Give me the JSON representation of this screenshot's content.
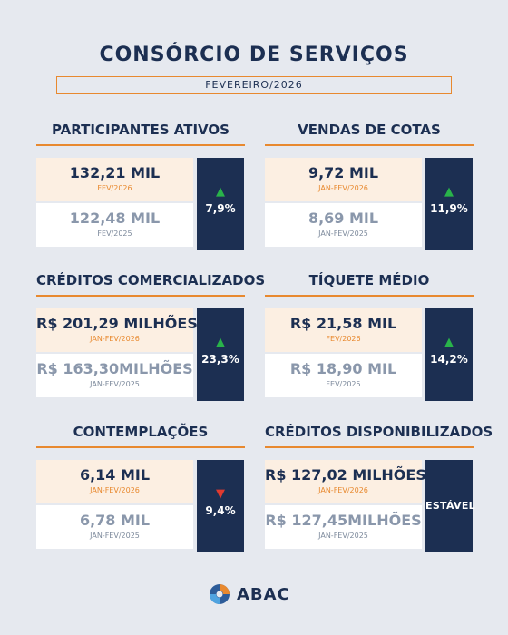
{
  "header": {
    "title": "CONSÓRCIO DE SERVIÇOS",
    "period": "FEVEREIRO/2026"
  },
  "metrics": [
    {
      "title": "PARTICIPANTES ATIVOS",
      "current_value": "132,21 MIL",
      "current_period": "FEV/2026",
      "previous_value": "122,48 MIL",
      "previous_period": "FEV/2025",
      "direction": "up",
      "change": "7,9%"
    },
    {
      "title": "VENDAS DE COTAS",
      "current_value": "9,72 MIL",
      "current_period": "JAN-FEV/2026",
      "previous_value": "8,69 MIL",
      "previous_period": "JAN-FEV/2025",
      "direction": "up",
      "change": "11,9%"
    },
    {
      "title": "CRÉDITOS COMERCIALIZADOS",
      "current_value": "R$ 201,29 MILHÕES",
      "current_period": "JAN-FEV/2026",
      "previous_value": "R$ 163,30MILHÕES",
      "previous_period": "JAN-FEV/2025",
      "direction": "up",
      "change": "23,3%"
    },
    {
      "title": "TÍQUETE MÉDIO",
      "current_value": "R$ 21,58 MIL",
      "current_period": "FEV/2026",
      "previous_value": "R$ 18,90 MIL",
      "previous_period": "FEV/2025",
      "direction": "up",
      "change": "14,2%"
    },
    {
      "title": "CONTEMPLAÇÕES",
      "current_value": "6,14 MIL",
      "current_period": "JAN-FEV/2026",
      "previous_value": "6,78 MIL",
      "previous_period": "JAN-FEV/2025",
      "direction": "down",
      "change": "9,4%"
    },
    {
      "title": "CRÉDITOS DISPONIBILIZADOS",
      "current_value": "R$ 127,02 MILHÕES",
      "current_period": "JAN-FEV/2026",
      "previous_value": "R$ 127,45MILHÕES",
      "previous_period": "JAN-FEV/2025",
      "direction": "stable",
      "change": "ESTÁVEL"
    }
  ],
  "icons": {
    "up": "arrow-up-icon",
    "down": "arrow-down-icon",
    "logo": "abac-logo-icon"
  },
  "colors": {
    "navy": "#1c2f52",
    "orange": "#e8892f",
    "up": "#29b34a",
    "down": "#e03a2f"
  },
  "footer": {
    "logo_text": "ABAC"
  }
}
